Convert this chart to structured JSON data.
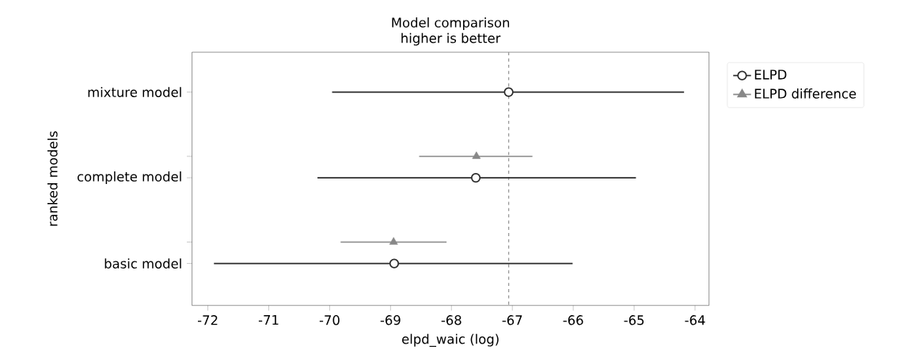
{
  "chart_data": {
    "type": "scatter",
    "orientation": "horizontal",
    "title": "Model comparison",
    "subtitle": "higher is better",
    "xlabel": "elpd_waic (log)",
    "ylabel": "ranked models",
    "categories": [
      "mixture model",
      "complete model",
      "basic model"
    ],
    "series": [
      {
        "name": "ELPD",
        "color": "#2b2b2b",
        "marker": "circle",
        "values": [
          -67.06,
          -67.6,
          -68.94
        ],
        "errors": [
          [
            -69.96,
            -64.18
          ],
          [
            -70.2,
            -64.97
          ],
          [
            -71.9,
            -66.01
          ]
        ]
      },
      {
        "name": "ELPD difference",
        "color": "#888888",
        "marker": "triangle",
        "values": [
          null,
          -67.59,
          -68.95
        ],
        "errors": [
          null,
          [
            -68.53,
            -66.67
          ],
          [
            -69.82,
            -68.08
          ]
        ]
      }
    ],
    "xlim": [
      -72.26,
      -63.77
    ],
    "xticks": [
      -72,
      -71,
      -70,
      -69,
      -68,
      -67,
      -66,
      -65,
      -64
    ],
    "ref_lines": [
      {
        "axis": "x",
        "value": -67.06,
        "color": "#999999",
        "line_style": "dashed"
      }
    ],
    "legend": "top right",
    "grid": false
  }
}
